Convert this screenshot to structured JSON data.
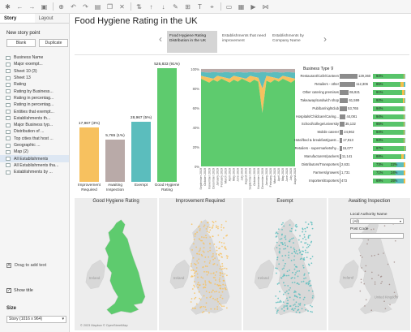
{
  "story": {
    "tabs": [
      "Story",
      "Layout"
    ],
    "new_story_point": "New story point",
    "blank_label": "Blank",
    "duplicate_label": "Duplicate",
    "sheets": [
      "Business Name",
      "Major exempt...",
      "Sheet 10 (3)",
      "Sheet 13",
      "Rating",
      "Rating by Business...",
      "Rating in percentag...",
      "Rating in percentag...",
      "Entities that exempt...",
      "Establishments th...",
      "Major Business typ...",
      "Distribution of ...",
      "Top cities that host ...",
      "Geographic ...",
      "Map (2)",
      "All Establishments",
      "All Establishments tha...",
      "Establishments by ..."
    ],
    "drag_label": "Drag to add text",
    "show_title_label": "Show title",
    "size_heading": "Size",
    "size_value": "Story (1016 x 964)"
  },
  "title": "Food Hygiene Rating in the UK",
  "story_points": [
    "Food Hygiene Rating Distribution in the UK",
    "Establishments that need improvement",
    "Establishments by Company Name"
  ],
  "colors": {
    "good": "#5ecb6e",
    "improve": "#f7c15f",
    "exempt": "#5bbdbd",
    "awaiting": "#b9aaa8"
  },
  "chart_data": [
    {
      "type": "bar",
      "categories": [
        "Improvement Required",
        "Awaiting Inspection",
        "Exempt",
        "Good Hygiene Rating"
      ],
      "values": [
        17967,
        5765,
        28967,
        526833
      ],
      "data_labels": [
        "17,967 (3%)",
        "5,765 (1%)",
        "28,967 (5%)",
        "526,833 (91%)"
      ]
    },
    {
      "type": "area",
      "ylabels": [
        "100%",
        "80%",
        "60%",
        "40%",
        "20%",
        "0%"
      ],
      "x": [
        "September 2019",
        "October 2019",
        "November 2019",
        "December 2019",
        "January 2019",
        "February 2019",
        "March 2019",
        "April 2019",
        "May 2019",
        "June 2019",
        "July 2019",
        "August 2019",
        "September 2019",
        "October 2019",
        "November 2019",
        "December 2019",
        "January 2020",
        "February 2020",
        "March 2020",
        "April 2020",
        "May 2020",
        "June 2020",
        "July 2020",
        "August 2020"
      ]
    },
    {
      "type": "table",
      "header": "Business Type",
      "rows": [
        {
          "name": "Restaurant/Cafe/Canteen",
          "count": "129,360",
          "good": "94%"
        },
        {
          "name": "Retailers - other",
          "count": "112,306",
          "good": "85%"
        },
        {
          "name": "Other catering premises",
          "count": "65,921",
          "good": "91%"
        },
        {
          "name": "Takeaway/sandwich shop",
          "count": "61,599",
          "good": "92%"
        },
        {
          "name": "Pub/bar/nightclub",
          "count": "53,765",
          "good": "94%"
        },
        {
          "name": "Hospitals/Childcare/Caring...",
          "count": "44,081",
          "good": "94%"
        },
        {
          "name": "School/college/university",
          "count": "35,132",
          "good": "95%"
        },
        {
          "name": "Mobile caterer",
          "count": "24,962",
          "good": "94%"
        },
        {
          "name": "Hotel/bed & breakfast/guest...",
          "count": "17,913",
          "good": "94%"
        },
        {
          "name": "Retailers - supermarkets/hy...",
          "count": "15,077",
          "good": "97%"
        },
        {
          "name": "Manufacturers/packers",
          "count": "11,141",
          "good": "88%"
        },
        {
          "name": "Distributors/Transporters",
          "count": "2,631",
          "good": "73%",
          "other": "22%"
        },
        {
          "name": "Farmers/growers",
          "count": "1,731",
          "good": "71%",
          "other": "24%"
        },
        {
          "name": "Importers/Exporters",
          "count": "473",
          "good": "69%",
          "other": "25%"
        }
      ]
    }
  ],
  "maps": {
    "titles": [
      "Good Hygiene Rating",
      "Improvement Required",
      "Exempt",
      "Awaiting Inspection"
    ],
    "ireland": "Ireland",
    "uk": "United Kingdom",
    "copyright": "© 2023 Mapbox © OpenStreetMap",
    "filter_heading": "Local Authority Name",
    "filter_value": "(All)",
    "postcode_heading": "Post Code"
  }
}
